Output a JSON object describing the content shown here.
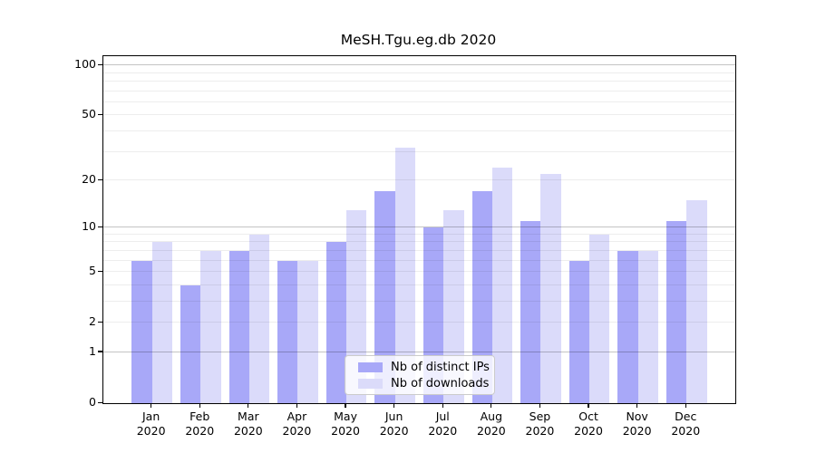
{
  "chart_data": {
    "type": "bar",
    "title": "MeSH.Tgu.eg.db 2020",
    "x_axis": {
      "months": [
        "Jan",
        "Feb",
        "Mar",
        "Apr",
        "May",
        "Jun",
        "Jul",
        "Aug",
        "Sep",
        "Oct",
        "Nov",
        "Dec"
      ],
      "year": "2020"
    },
    "y_axis": {
      "scale": "log1p",
      "ticks": [
        0,
        1,
        2,
        5,
        10,
        20,
        50,
        100
      ],
      "major_gridlines": [
        1,
        10,
        100
      ],
      "minor_gridlines": [
        2,
        3,
        4,
        5,
        6,
        7,
        8,
        9,
        20,
        30,
        40,
        50,
        60,
        70,
        80,
        90
      ],
      "ylim": [
        0,
        113.5
      ]
    },
    "series": [
      {
        "name": "Nb of distinct IPs",
        "color": "#a8a8f8",
        "values": [
          6,
          4,
          7,
          6,
          8,
          17,
          10,
          17,
          11,
          6,
          7,
          11
        ]
      },
      {
        "name": "Nb of downloads",
        "color": "#dbdbfa",
        "values": [
          8,
          7,
          9,
          6,
          13,
          32,
          13,
          24,
          22,
          9,
          7,
          15
        ]
      }
    ],
    "legend_position": "lower center",
    "grid": true
  }
}
